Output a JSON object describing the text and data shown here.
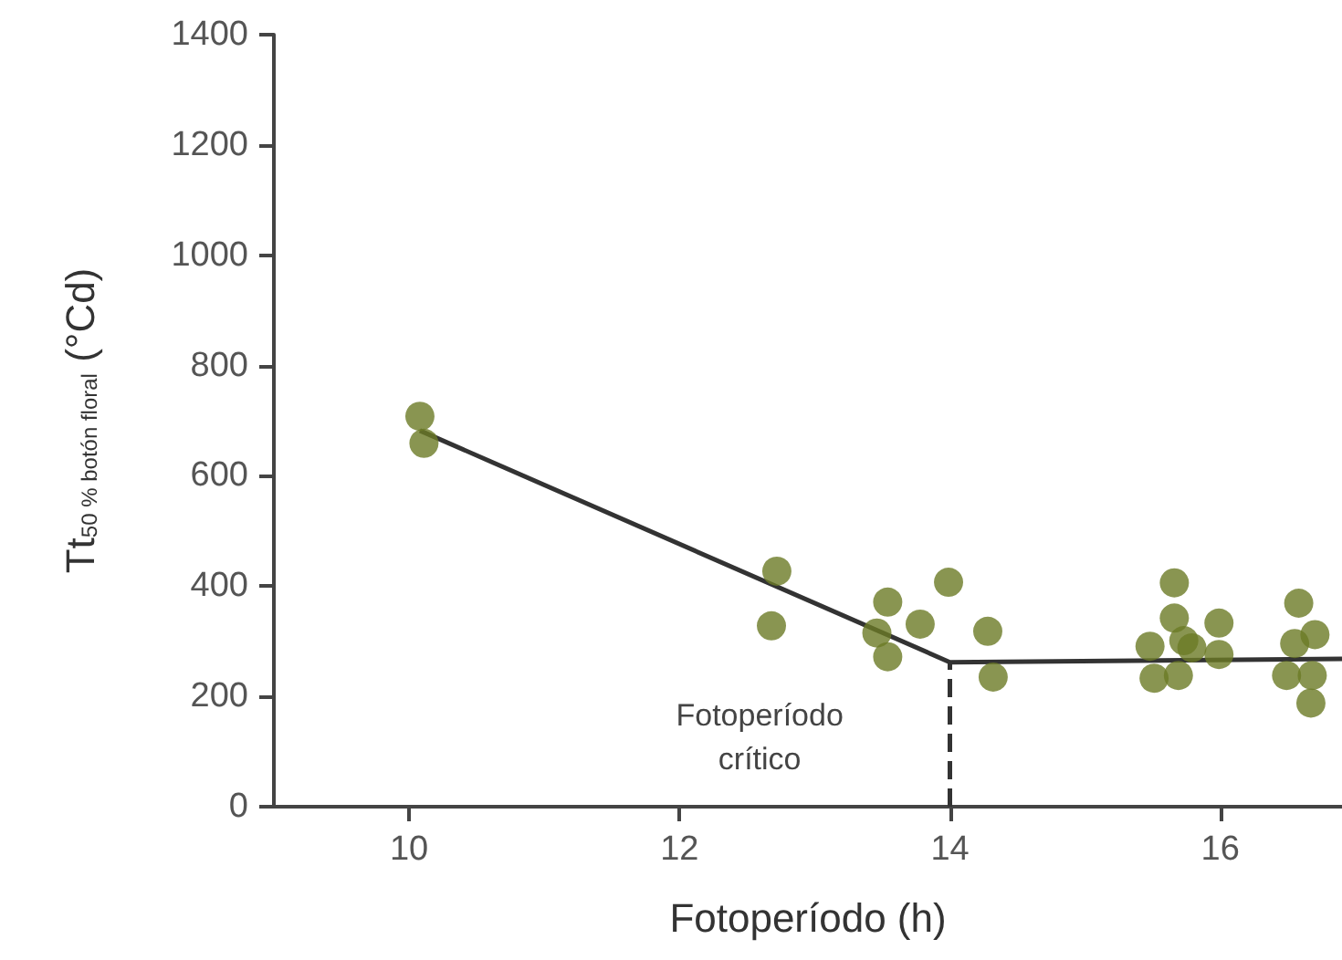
{
  "chart_data": {
    "type": "scatter",
    "xlabel": "Fotoperíodo (h)",
    "ylabel": "Tt$_{50 % botón floral}$ (°Cd)",
    "xlim": [
      9,
      16.9
    ],
    "xticks": [
      10,
      12,
      14,
      16
    ],
    "ylim": [
      0,
      1400
    ],
    "yticks": [
      0,
      200,
      400,
      600,
      800,
      1000,
      1200,
      1400
    ],
    "grid": false,
    "marker": "circle",
    "series": [
      {
        "color": "#6b7a25",
        "x": [
          10.08,
          10.11,
          12.72,
          12.68,
          13.54,
          13.46,
          13.54,
          13.78,
          13.99,
          14.28,
          14.32,
          15.48,
          15.51,
          15.66,
          15.66,
          15.69,
          15.73,
          15.79,
          15.99,
          15.99,
          16.49,
          16.55,
          16.58,
          16.7,
          16.68,
          16.67
        ],
        "values": [
          708,
          659,
          427,
          328,
          371,
          315,
          272,
          331,
          407,
          318,
          235,
          291,
          233,
          406,
          342,
          238,
          301,
          288,
          333,
          276,
          238,
          296,
          369,
          312,
          238,
          188
        ]
      },
      {
        "type": "line",
        "color": "#333333",
        "marker": "none",
        "line_style": "solid",
        "x": [
          10.08,
          14,
          16.9
        ],
        "values": [
          682,
          262,
          268
        ]
      }
    ],
    "ref_lines": [
      {
        "axis": "x",
        "value": 14,
        "label": "Fotoperíodo\ncrítico",
        "color": "#333333",
        "line_style": "dashed"
      }
    ]
  }
}
